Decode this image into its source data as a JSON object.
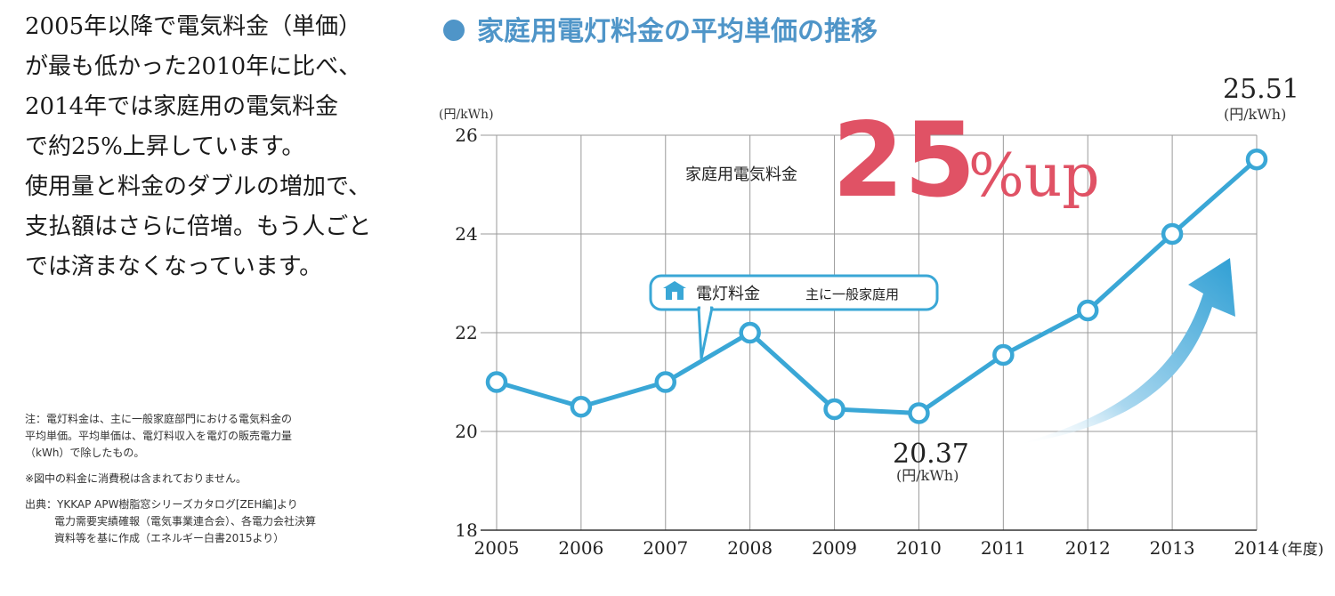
{
  "left_text": {
    "lines": [
      "2005年以降で電気料金（単価）",
      "が最も低かった2010年に比べ、",
      "2014年では家庭用の電気料金",
      "で約25%上昇しています。",
      "使用量と料金のダブルの増加で、",
      "支払額はさらに倍増。もう人ごと",
      "では済まなくなっています。"
    ]
  },
  "notes": {
    "note1": "注：電灯料金は、主に一般家庭部門における電気料金の",
    "note2": "平均単価。平均単価は、電灯料収入を電灯の販売電力量",
    "note3": "（kWh）で除したもの。",
    "note4": "※図中の料金に消費税は含まれておりません。",
    "source1": "出典：YKKAP APW樹脂窓シリーズカタログ[ZEH編]より",
    "source2": "電力需要実績確報（電気事業連合会）、各電力会社決算",
    "source3": "資料等を基に作成（エネルギー白書2015より）"
  },
  "chart_data": {
    "type": "line",
    "title": "家庭用電灯料金の平均単価の推移",
    "ylabel": "(円/kWh)",
    "xlabel": "(年度)",
    "categories": [
      "2005",
      "2006",
      "2007",
      "2008",
      "2009",
      "2010",
      "2011",
      "2012",
      "2013",
      "2014"
    ],
    "series": [
      {
        "name": "電灯料金",
        "values": [
          21.0,
          20.5,
          21.0,
          22.0,
          20.45,
          20.37,
          21.55,
          22.45,
          24.0,
          25.51
        ]
      }
    ],
    "ylim": [
      18,
      26
    ],
    "yticks": [
      "26",
      "24",
      "22",
      "20",
      "18"
    ],
    "grid": true,
    "line_color": "#3aa7d6",
    "annotations": {
      "min_value": "20.37",
      "min_unit": "(円/kWh)",
      "max_value": "25.51",
      "max_unit": "(円/kWh)",
      "up_label": "家庭用電気料金",
      "up_number": "25",
      "up_suffix": "%up",
      "up_color": "#e05265"
    },
    "callout": {
      "label": "電灯料金",
      "sub": "主に一般家庭用",
      "icon": "house-icon"
    }
  }
}
